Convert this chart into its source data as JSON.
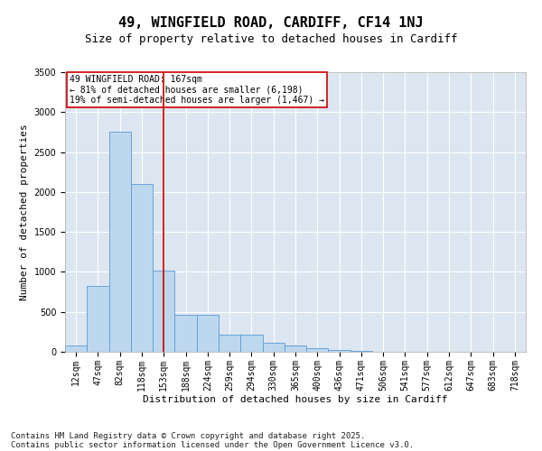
{
  "title1": "49, WINGFIELD ROAD, CARDIFF, CF14 1NJ",
  "title2": "Size of property relative to detached houses in Cardiff",
  "xlabel": "Distribution of detached houses by size in Cardiff",
  "ylabel": "Number of detached properties",
  "categories": [
    "12sqm",
    "47sqm",
    "82sqm",
    "118sqm",
    "153sqm",
    "188sqm",
    "224sqm",
    "259sqm",
    "294sqm",
    "330sqm",
    "365sqm",
    "400sqm",
    "436sqm",
    "471sqm",
    "506sqm",
    "541sqm",
    "577sqm",
    "612sqm",
    "647sqm",
    "683sqm",
    "718sqm"
  ],
  "values": [
    75,
    820,
    2750,
    2100,
    1020,
    460,
    460,
    215,
    215,
    110,
    80,
    45,
    20,
    10,
    5,
    3,
    2,
    2,
    1,
    1,
    1
  ],
  "bar_color": "#bdd7ee",
  "bar_edge_color": "#5b9bd5",
  "vline_x": 4,
  "vline_color": "#cc0000",
  "annotation_text": "49 WINGFIELD ROAD: 167sqm\n← 81% of detached houses are smaller (6,198)\n19% of semi-detached houses are larger (1,467) →",
  "annotation_box_color": "#ffffff",
  "annotation_box_edge": "#cc0000",
  "ylim": [
    0,
    3500
  ],
  "yticks": [
    0,
    500,
    1000,
    1500,
    2000,
    2500,
    3000,
    3500
  ],
  "bg_color": "#dce6f1",
  "footer1": "Contains HM Land Registry data © Crown copyright and database right 2025.",
  "footer2": "Contains public sector information licensed under the Open Government Licence v3.0.",
  "title_fontsize": 11,
  "subtitle_fontsize": 9,
  "footer_fontsize": 6.5,
  "axis_label_fontsize": 8,
  "tick_fontsize": 7,
  "annotation_fontsize": 7
}
